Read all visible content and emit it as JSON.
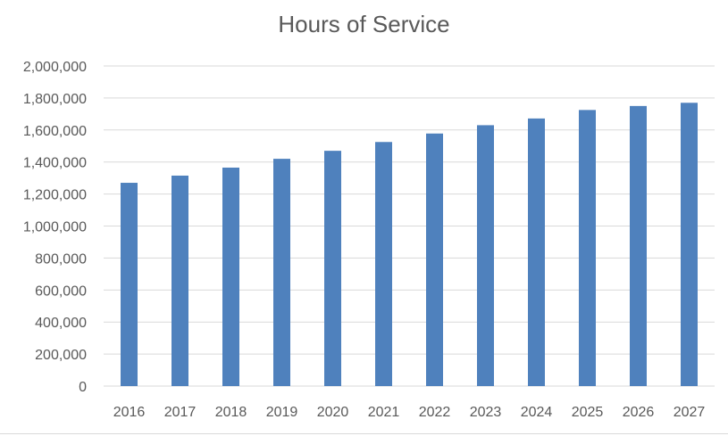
{
  "chart_data": {
    "type": "bar",
    "title": "Hours of Service",
    "xlabel": "",
    "ylabel": "",
    "categories": [
      "2016",
      "2017",
      "2018",
      "2019",
      "2020",
      "2021",
      "2022",
      "2023",
      "2024",
      "2025",
      "2026",
      "2027"
    ],
    "series": [
      {
        "values": [
          1270000,
          1315000,
          1365000,
          1420000,
          1470000,
          1525000,
          1578000,
          1630000,
          1672000,
          1725000,
          1750000,
          1770000
        ]
      }
    ],
    "ylim": [
      0,
      2000000
    ],
    "y_ticks": [
      "0",
      "200,000",
      "400,000",
      "600,000",
      "800,000",
      "1,000,000",
      "1,200,000",
      "1,400,000",
      "1,600,000",
      "1,800,000",
      "2,000,000"
    ],
    "y_tick_values": [
      0,
      200000,
      400000,
      600000,
      800000,
      1000000,
      1200000,
      1400000,
      1600000,
      1800000,
      2000000
    ],
    "grid": true,
    "legend": "none",
    "colors": {
      "bar": "#4f81bd",
      "grid": "#d9d9d9",
      "axis_text": "#595959",
      "title": "#595959"
    }
  }
}
